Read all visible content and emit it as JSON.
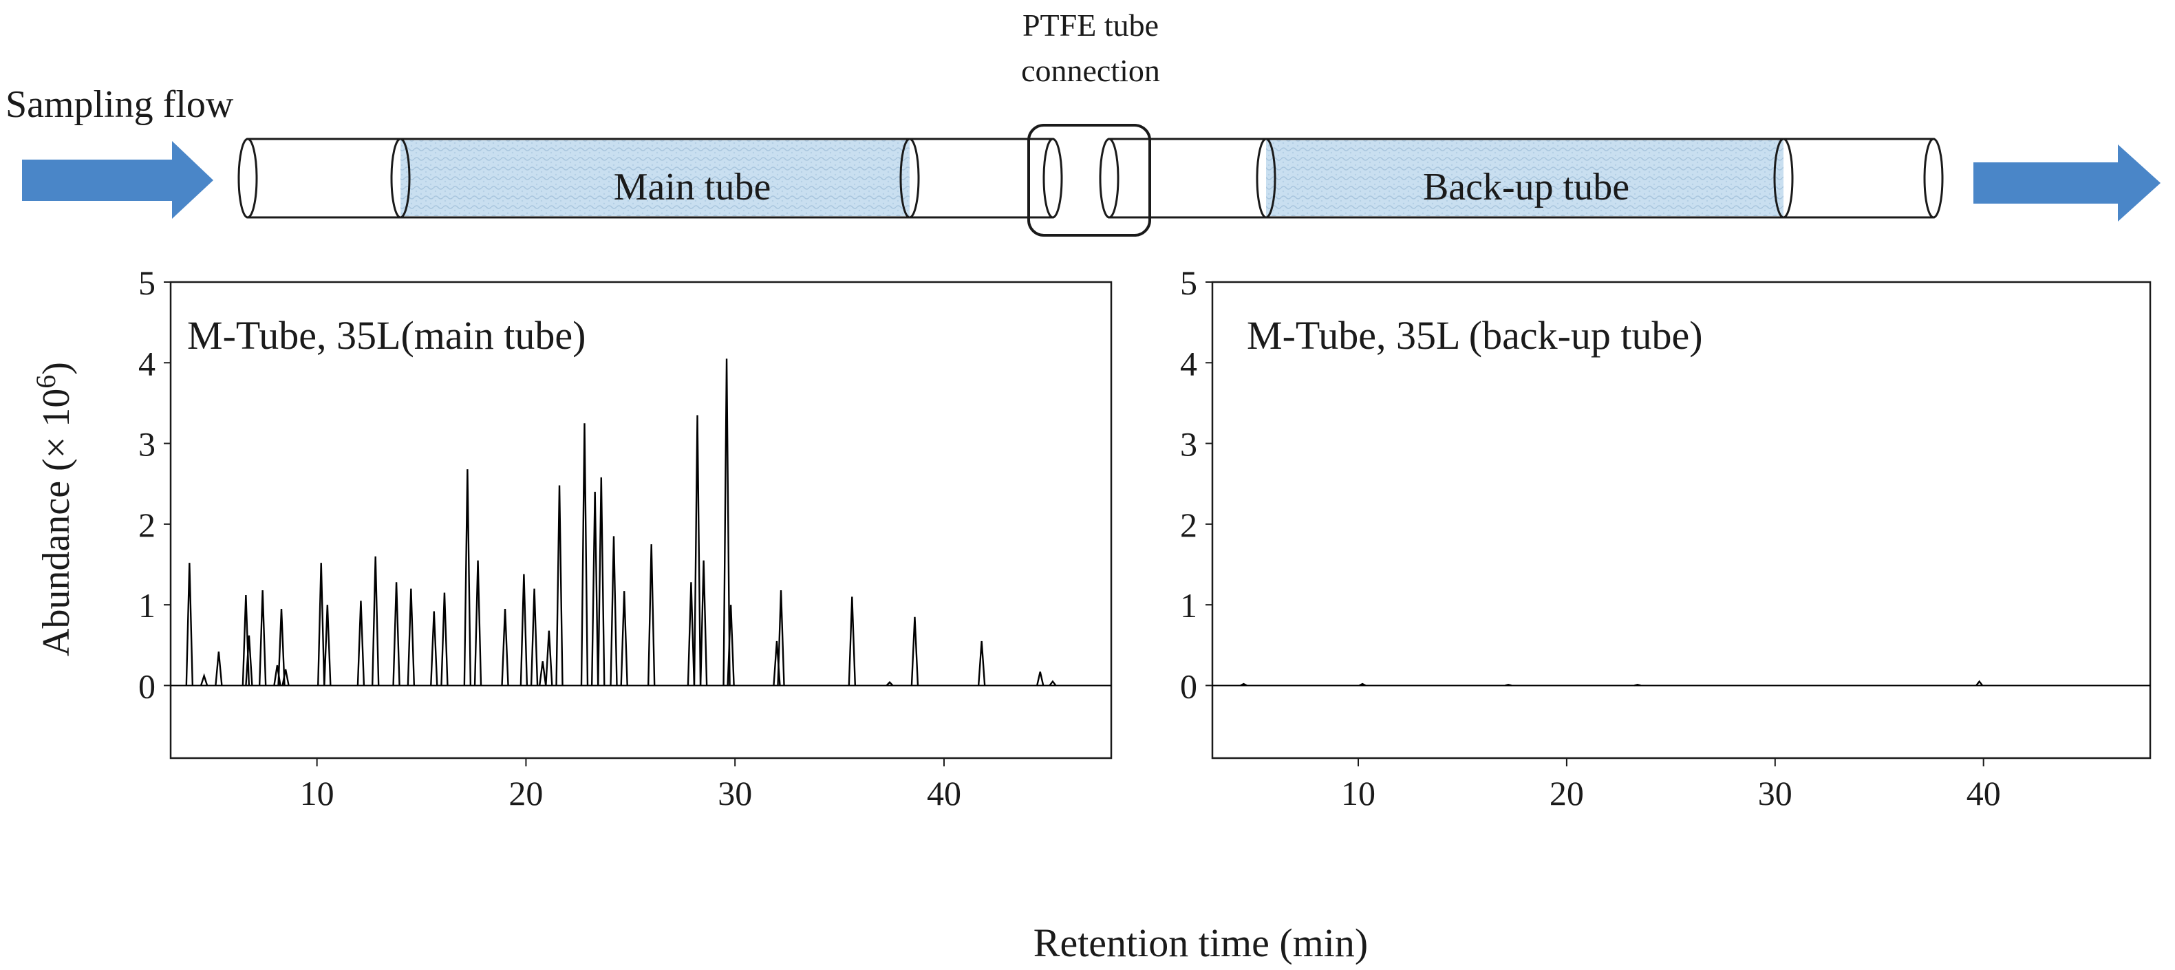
{
  "schematic": {
    "flow_label": "Sampling flow",
    "connection_label_line1": "PTFE tube",
    "connection_label_line2": "connection",
    "main_tube_label": "Main tube",
    "backup_tube_label": "Back-up tube",
    "arrow_color": "#4a86c8",
    "packing_color": "#c9dff0"
  },
  "chart_data": [
    {
      "type": "line",
      "title": "M-Tube, 35L(main tube)",
      "xlabel": "Retention time (min)",
      "ylabel_prefix": "Abundance (× 10",
      "ylabel_exponent": "6",
      "ylabel_suffix": ")",
      "xlim": [
        3,
        48
      ],
      "ylim": [
        -0.9,
        5
      ],
      "xticks": [
        10,
        20,
        30,
        40
      ],
      "yticks": [
        0,
        1,
        2,
        3,
        4,
        5
      ],
      "line_color": "#000000",
      "peaks": [
        {
          "rt": 3.9,
          "h": 1.52
        },
        {
          "rt": 4.6,
          "h": 0.12
        },
        {
          "rt": 5.3,
          "h": 0.42
        },
        {
          "rt": 6.6,
          "h": 1.12
        },
        {
          "rt": 6.75,
          "h": 0.62
        },
        {
          "rt": 7.4,
          "h": 1.18
        },
        {
          "rt": 8.1,
          "h": 0.25
        },
        {
          "rt": 8.3,
          "h": 0.95
        },
        {
          "rt": 8.5,
          "h": 0.2
        },
        {
          "rt": 10.2,
          "h": 1.52
        },
        {
          "rt": 10.5,
          "h": 1.0
        },
        {
          "rt": 12.1,
          "h": 1.05
        },
        {
          "rt": 12.8,
          "h": 1.6
        },
        {
          "rt": 13.8,
          "h": 1.28
        },
        {
          "rt": 14.5,
          "h": 1.2
        },
        {
          "rt": 15.6,
          "h": 0.92
        },
        {
          "rt": 16.1,
          "h": 1.15
        },
        {
          "rt": 17.2,
          "h": 2.68
        },
        {
          "rt": 17.7,
          "h": 1.55
        },
        {
          "rt": 19.0,
          "h": 0.95
        },
        {
          "rt": 19.9,
          "h": 1.38
        },
        {
          "rt": 20.4,
          "h": 1.2
        },
        {
          "rt": 20.8,
          "h": 0.3
        },
        {
          "rt": 21.1,
          "h": 0.68
        },
        {
          "rt": 21.6,
          "h": 2.48
        },
        {
          "rt": 22.8,
          "h": 3.25
        },
        {
          "rt": 23.3,
          "h": 2.4
        },
        {
          "rt": 23.6,
          "h": 2.58
        },
        {
          "rt": 24.2,
          "h": 1.85
        },
        {
          "rt": 24.7,
          "h": 1.17
        },
        {
          "rt": 26.0,
          "h": 1.75
        },
        {
          "rt": 27.9,
          "h": 1.28
        },
        {
          "rt": 28.2,
          "h": 3.35
        },
        {
          "rt": 28.5,
          "h": 1.55
        },
        {
          "rt": 29.6,
          "h": 4.05
        },
        {
          "rt": 29.8,
          "h": 1.0
        },
        {
          "rt": 32.0,
          "h": 0.55
        },
        {
          "rt": 32.2,
          "h": 1.18
        },
        {
          "rt": 35.6,
          "h": 1.1
        },
        {
          "rt": 37.4,
          "h": 0.04
        },
        {
          "rt": 38.6,
          "h": 0.85
        },
        {
          "rt": 41.8,
          "h": 0.55
        },
        {
          "rt": 44.6,
          "h": 0.17
        },
        {
          "rt": 45.2,
          "h": 0.05
        }
      ]
    },
    {
      "type": "line",
      "title": "M-Tube, 35L (back-up tube)",
      "xlabel": "Retention time (min)",
      "ylabel": "",
      "xlim": [
        3,
        48
      ],
      "ylim": [
        -0.9,
        5
      ],
      "xticks": [
        10,
        20,
        30,
        40
      ],
      "yticks": [
        0,
        1,
        2,
        3,
        4,
        5
      ],
      "line_color": "#000000",
      "peaks": [
        {
          "rt": 4.5,
          "h": 0.02
        },
        {
          "rt": 10.2,
          "h": 0.02
        },
        {
          "rt": 17.2,
          "h": 0.01
        },
        {
          "rt": 23.4,
          "h": 0.01
        },
        {
          "rt": 39.8,
          "h": 0.05
        }
      ]
    }
  ],
  "figure": {
    "x_axis_title": "Retention time (min)"
  }
}
